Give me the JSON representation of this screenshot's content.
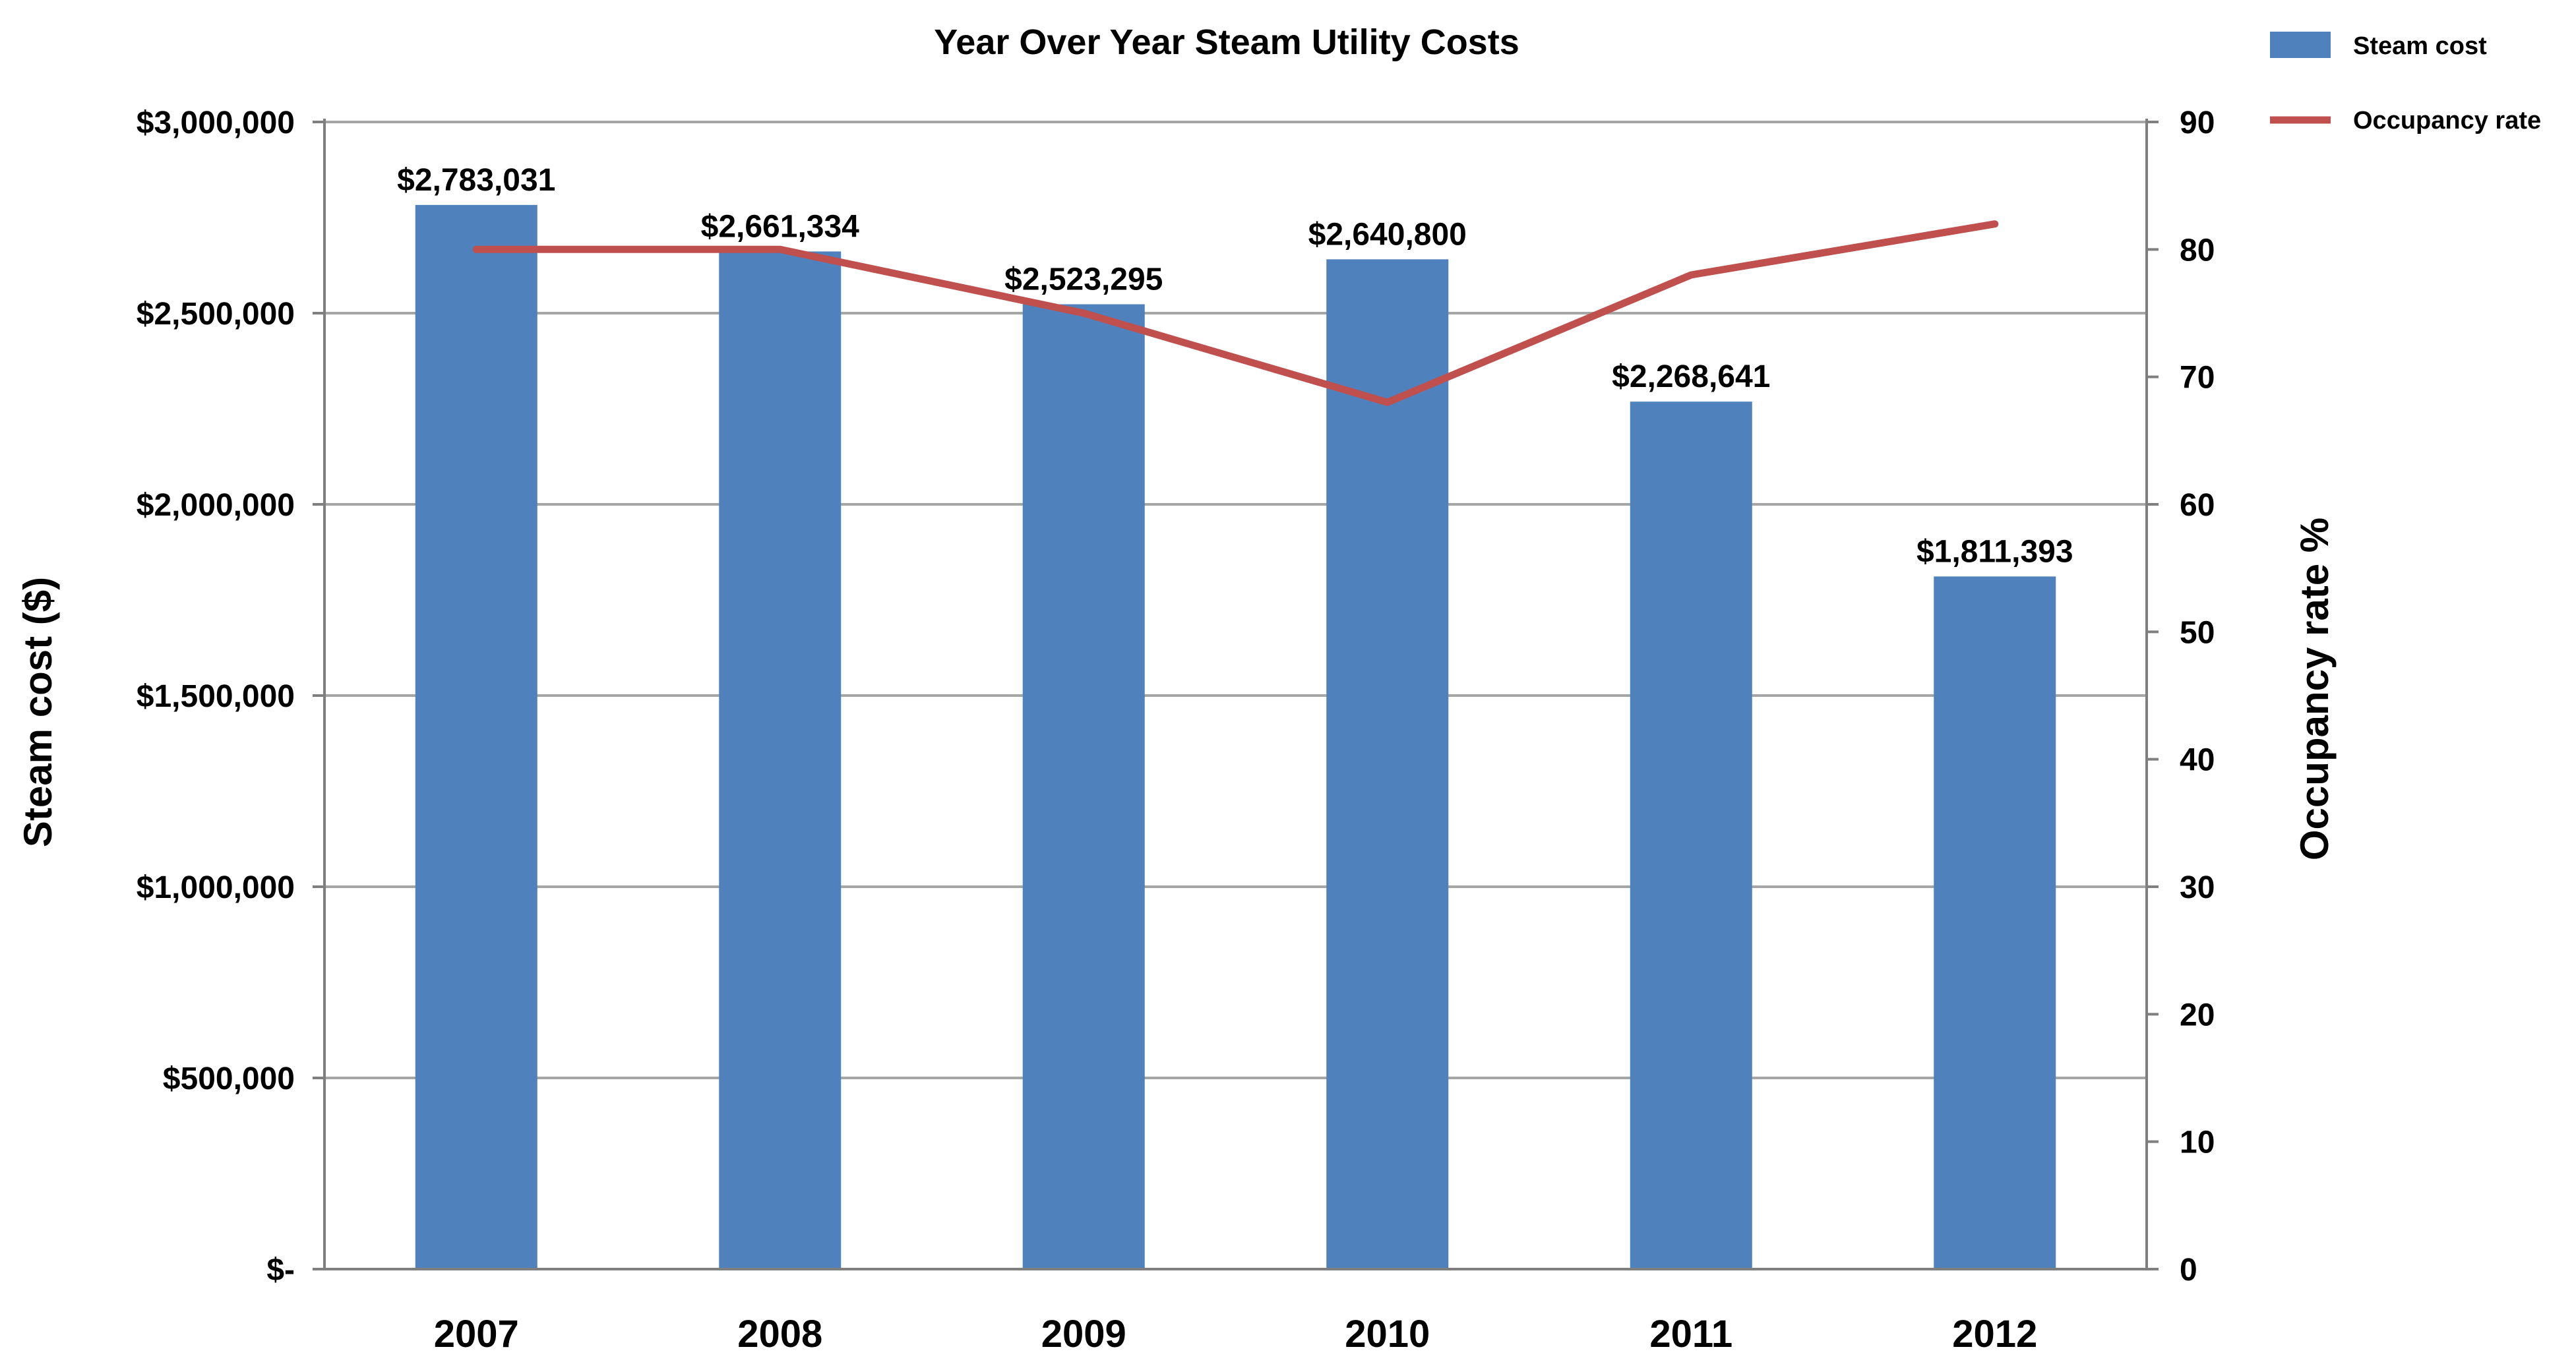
{
  "chart_data": {
    "type": "bar",
    "title": "Year Over Year Steam Utility Costs",
    "categories": [
      "2007",
      "2008",
      "2009",
      "2010",
      "2011",
      "2012"
    ],
    "series": [
      {
        "name": "Steam cost",
        "type": "bar",
        "axis": "left",
        "color": "#4F81BD",
        "values": [
          2783031,
          2661334,
          2523295,
          2640800,
          2268641,
          1811393
        ],
        "labels": [
          "$2,783,031",
          "$2,661,334",
          "$2,523,295",
          "$2,640,800",
          "$2,268,641",
          "$1,811,393"
        ]
      },
      {
        "name": "Occupancy rate",
        "type": "line",
        "axis": "right",
        "color": "#C0504D",
        "values": [
          80,
          80,
          75,
          68,
          78,
          82
        ]
      }
    ],
    "left_axis": {
      "label": "Steam cost ($)",
      "ylim": [
        0,
        3000000
      ],
      "ticks": [
        0,
        500000,
        1000000,
        1500000,
        2000000,
        2500000,
        3000000
      ],
      "tick_labels": [
        "$-",
        "$500,000",
        "$1,000,000",
        "$1,500,000",
        "$2,000,000",
        "$2,500,000",
        "$3,000,000"
      ]
    },
    "right_axis": {
      "label": "Occupancy rate %",
      "ylim": [
        0,
        90
      ],
      "ticks": [
        0,
        10,
        20,
        30,
        40,
        50,
        60,
        70,
        80,
        90
      ],
      "tick_labels": [
        "0",
        "10",
        "20",
        "30",
        "40",
        "50",
        "60",
        "70",
        "80",
        "90"
      ]
    },
    "grid": true,
    "legend": {
      "position": "top-right",
      "entries": [
        "Steam cost",
        "Occupancy rate"
      ]
    },
    "colors": {
      "bar": "#4F81BD",
      "line": "#C0504D",
      "grid": "#A6A6A6",
      "axis": "#7F7F7F"
    }
  }
}
